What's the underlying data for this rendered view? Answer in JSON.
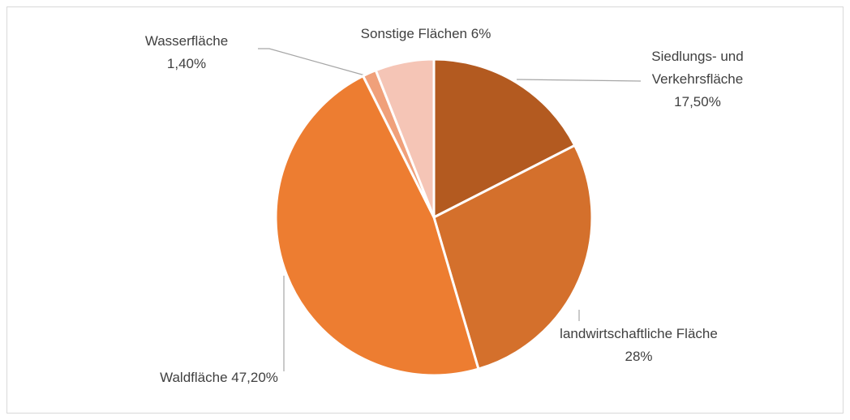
{
  "chart_data": {
    "type": "pie",
    "categories": [
      "Siedlungs- und Verkehrsfläche",
      "landwirtschaftliche Fläche",
      "Waldfläche",
      "Wasserfläche",
      "Sonstige Flächen"
    ],
    "values": [
      17.5,
      28,
      47.2,
      1.4,
      6
    ],
    "value_labels": [
      "17,50%",
      "28%",
      "47,20%",
      "1,40%",
      "6%"
    ],
    "colors": [
      "#b35a20",
      "#d4702c",
      "#ed7d31",
      "#f0a07a",
      "#f5c5b6"
    ]
  }
}
